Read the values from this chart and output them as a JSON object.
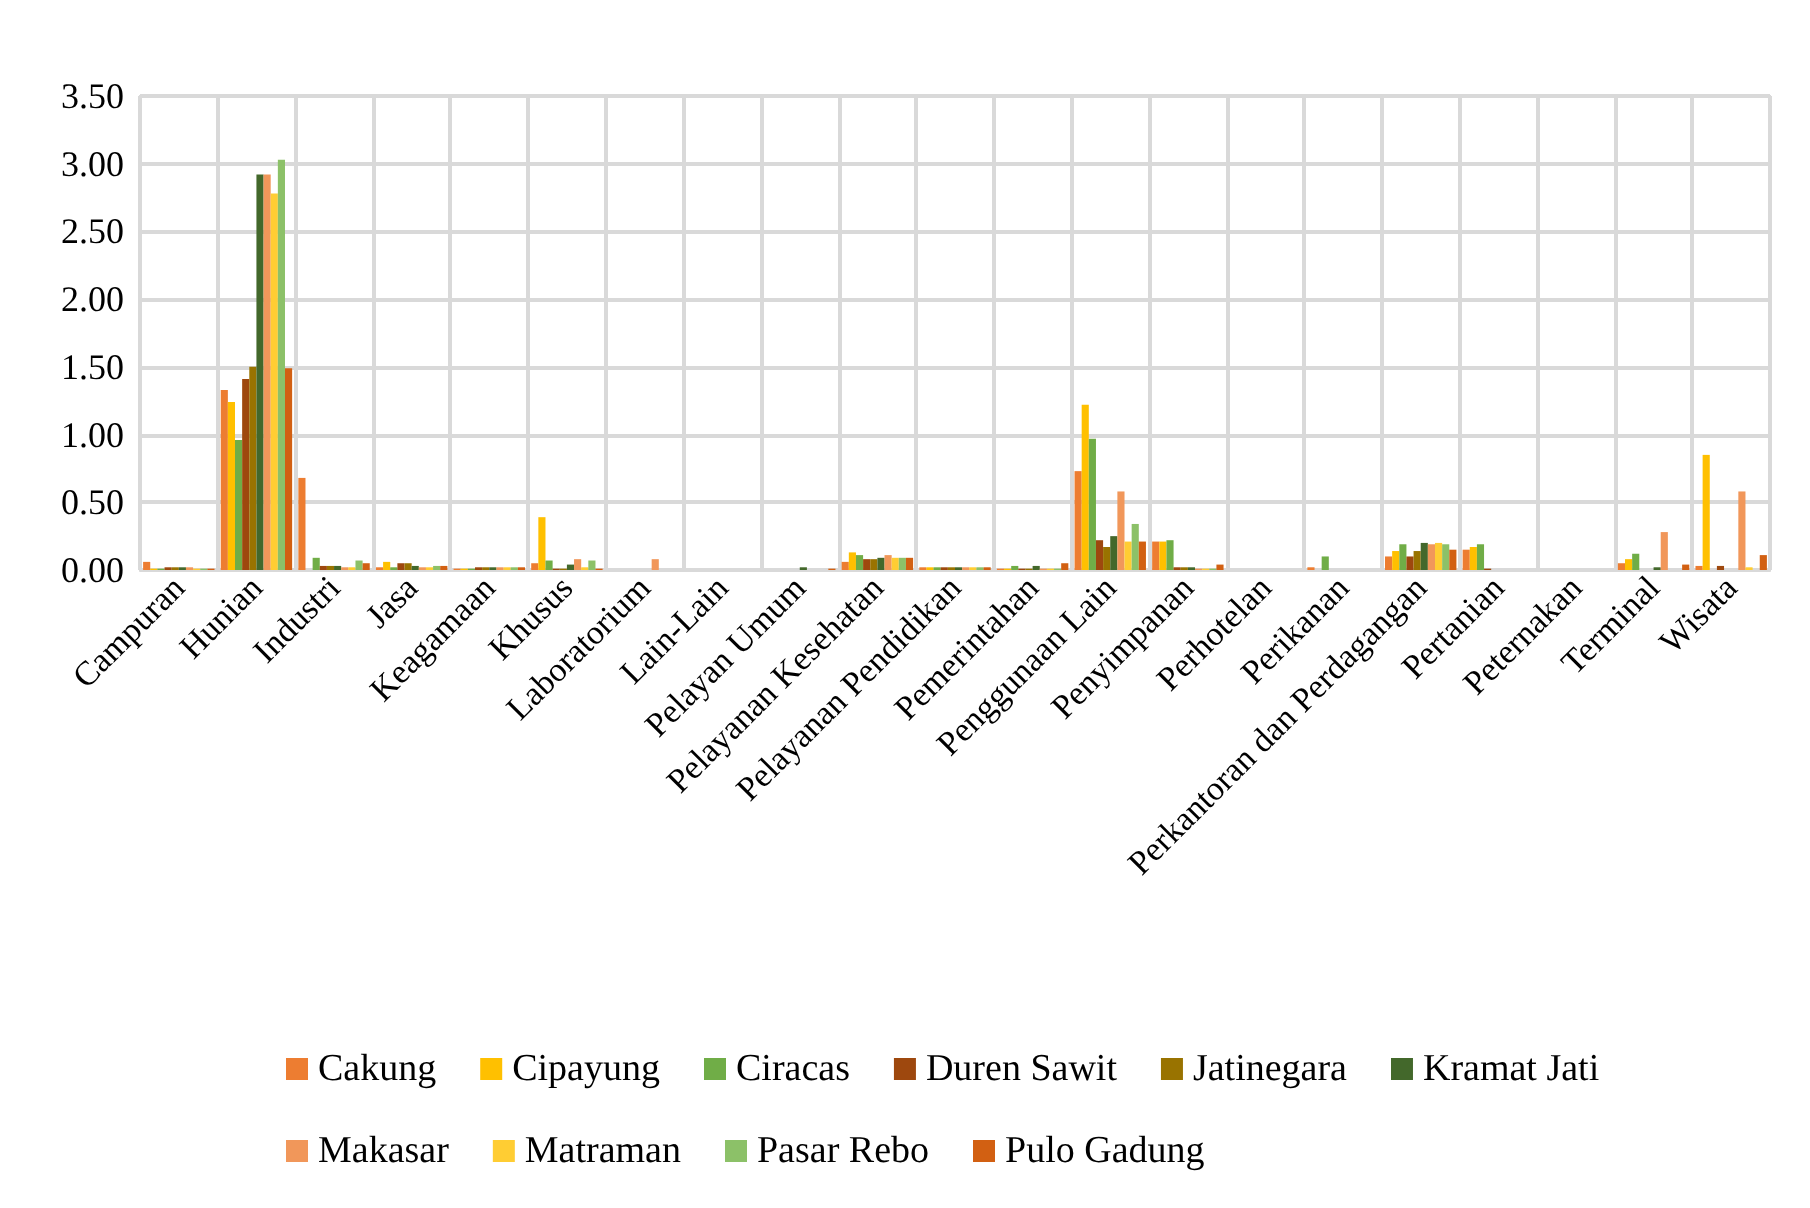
{
  "chart_data": {
    "type": "bar",
    "categories": [
      "Campuran",
      "Hunian",
      "Industri",
      "Jasa",
      "Keagamaan",
      "Khusus",
      "Laboratorium",
      "Lain-Lain",
      "Pelayan Umum",
      "Pelayanan Kesehatan",
      "Pelayanan Pendidikan",
      "Pemerintahan",
      "Penggunaan Lain",
      "Penyimpanan",
      "Perhotelan",
      "Perikanan",
      "Perkantoran dan Perdagangan",
      "Pertanian",
      "Peternakan",
      "Terminal",
      "Wisata"
    ],
    "series": [
      {
        "name": "Cakung",
        "color": "#ed7d31",
        "values": [
          0.06,
          1.33,
          0.68,
          0.02,
          0.01,
          0.05,
          0,
          0,
          0,
          0.06,
          0.02,
          0.01,
          0.73,
          0.21,
          0,
          0.02,
          0.1,
          0.15,
          0,
          0.05,
          0.03
        ]
      },
      {
        "name": "Cipayung",
        "color": "#ffc000",
        "values": [
          0.01,
          1.24,
          0,
          0.06,
          0.01,
          0.39,
          0,
          0,
          0,
          0.13,
          0.02,
          0.01,
          1.22,
          0.21,
          0,
          0,
          0.14,
          0.17,
          0,
          0.08,
          0.85
        ]
      },
      {
        "name": "Ciracas",
        "color": "#70ad47",
        "values": [
          0.01,
          0.96,
          0.09,
          0.02,
          0.01,
          0.07,
          0,
          0,
          0,
          0.11,
          0.02,
          0.03,
          0.97,
          0.22,
          0,
          0.1,
          0.19,
          0.19,
          0,
          0.12,
          0
        ]
      },
      {
        "name": "Duren Sawit",
        "color": "#9e480e",
        "values": [
          0.02,
          1.41,
          0.03,
          0.05,
          0.02,
          0.01,
          0,
          0,
          0,
          0.08,
          0.02,
          0.01,
          0.22,
          0.02,
          0,
          0,
          0.1,
          0.01,
          0,
          0,
          0.03
        ]
      },
      {
        "name": "Jatinegara",
        "color": "#997300",
        "values": [
          0.02,
          1.5,
          0.03,
          0.05,
          0.02,
          0.01,
          0,
          0,
          0,
          0.08,
          0.02,
          0.01,
          0.17,
          0.02,
          0,
          0,
          0.14,
          0,
          0,
          0,
          0
        ]
      },
      {
        "name": "Kramat Jati",
        "color": "#43682b",
        "values": [
          0.02,
          2.92,
          0.03,
          0.03,
          0.02,
          0.04,
          0,
          0,
          0.02,
          0.09,
          0.02,
          0.03,
          0.25,
          0.02,
          0,
          0,
          0.2,
          0,
          0,
          0.02,
          0
        ]
      },
      {
        "name": "Makasar",
        "color": "#f1975a",
        "values": [
          0.02,
          2.92,
          0.02,
          0.02,
          0.02,
          0.08,
          0.08,
          0,
          0,
          0.11,
          0.02,
          0.01,
          0.58,
          0.01,
          0,
          0,
          0.19,
          0,
          0,
          0.28,
          0.58
        ]
      },
      {
        "name": "Matraman",
        "color": "#ffcd33",
        "values": [
          0.01,
          2.78,
          0.02,
          0.02,
          0.02,
          0.02,
          0,
          0,
          0,
          0.09,
          0.02,
          0.01,
          0.21,
          0.01,
          0,
          0,
          0.2,
          0,
          0,
          0,
          0.02
        ]
      },
      {
        "name": "Pasar Rebo",
        "color": "#8cc168",
        "values": [
          0.01,
          3.03,
          0.07,
          0.03,
          0.02,
          0.07,
          0,
          0,
          0,
          0.09,
          0.02,
          0.01,
          0.34,
          0.01,
          0,
          0,
          0.19,
          0,
          0,
          0,
          0
        ]
      },
      {
        "name": "Pulo Gadung",
        "color": "#d26012",
        "values": [
          0.01,
          1.49,
          0.05,
          0.03,
          0.02,
          0.01,
          0,
          0,
          0.01,
          0.09,
          0.02,
          0.05,
          0.21,
          0.04,
          0,
          0,
          0.15,
          0,
          0,
          0.04,
          0.11
        ]
      }
    ],
    "ylim": [
      0,
      3.5
    ],
    "yticks": [
      {
        "value": 0,
        "label": "0.00"
      },
      {
        "value": 0.5,
        "label": "0.50"
      },
      {
        "value": 1,
        "label": "1.00"
      },
      {
        "value": 1.5,
        "label": "1.50"
      },
      {
        "value": 2,
        "label": "2.00"
      },
      {
        "value": 2.5,
        "label": "2.50"
      },
      {
        "value": 3,
        "label": "3.00"
      },
      {
        "value": 3.5,
        "label": "3.50"
      }
    ],
    "grid": true,
    "legend": "bottom"
  }
}
